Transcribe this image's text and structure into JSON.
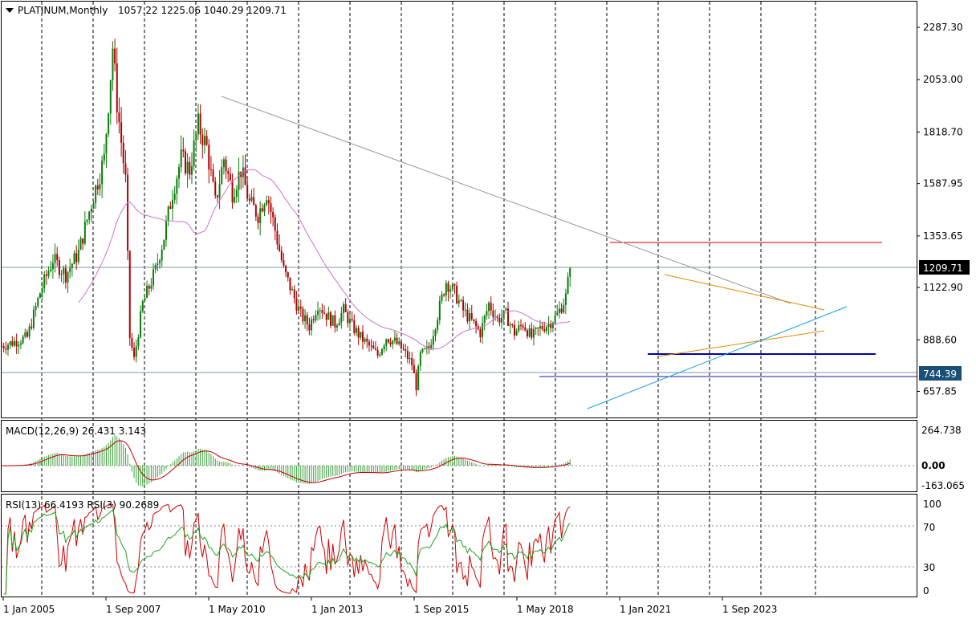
{
  "chart_data": {
    "type": "candlestick",
    "header": {
      "symbol": "PLATINUM,Monthly",
      "ohlc": "1057.22 1225.06 1040.29 1209.71"
    },
    "price_axis": {
      "ticks": [
        2287.3,
        2053.0,
        1818.7,
        1587.95,
        1353.65,
        1122.9,
        888.6,
        657.85
      ],
      "tick_labels": [
        "2287.30",
        "2053.00",
        "1818.70",
        "1587.95",
        "1353.65",
        "1122.90",
        "888.60",
        "657.85"
      ],
      "current_price_label": "1209.71",
      "marker_label": "744.39",
      "range": [
        495,
        2390
      ]
    },
    "time_axis": {
      "labels": [
        "1 Jan 2005",
        "1 Sep 2007",
        "1 May 2010",
        "1 Jan 2013",
        "1 Sep 2015",
        "1 May 2018",
        "1 Jan 2021",
        "1 Sep 2023"
      ]
    },
    "macd": {
      "label": "MACD(12,26,9) 26.431 3.143",
      "ticks": [
        "264.738",
        "0.00",
        "-163.065"
      ],
      "range": [
        -190,
        290
      ]
    },
    "rsi": {
      "label": "RSI(13) 66.4193  RSI(3) 90.2689",
      "ticks": [
        "100",
        "70",
        "30",
        "0"
      ],
      "levels": [
        70,
        30
      ]
    },
    "drawings": {
      "horizontal_levels": [
        1335,
        1209.71,
        795,
        780,
        760
      ],
      "resistance_trendline": {
        "from": [
          "2010-05",
          2000
        ],
        "to": [
          "2021-01",
          1335
        ]
      },
      "triangle_upper": {
        "from": [
          "2021-10",
          1180
        ],
        "to": [
          "2025-10",
          1055
        ]
      },
      "triangle_lower": {
        "from": [
          "2021-06",
          820
        ],
        "to": [
          "2025-10",
          950
        ]
      },
      "rising_support": {
        "from": [
          "2020-03",
          580
        ],
        "to": [
          "2025-12",
          1060
        ]
      }
    },
    "colors": {
      "up_candle": "#0a7d0a",
      "down_candle": "#b00000",
      "ma_line": "#d070d0",
      "macd_hist": "#3ca03c",
      "macd_signal": "#c00000",
      "rsi_fast": "#d00000",
      "rsi_slow": "#20a020",
      "resistance_level": "#c00000",
      "triangle": "#e08a00",
      "support_trend": "#1aa0e0",
      "support_level": "#0000b0",
      "trendline": "#999999",
      "price_label_bg": "#000000"
    }
  }
}
